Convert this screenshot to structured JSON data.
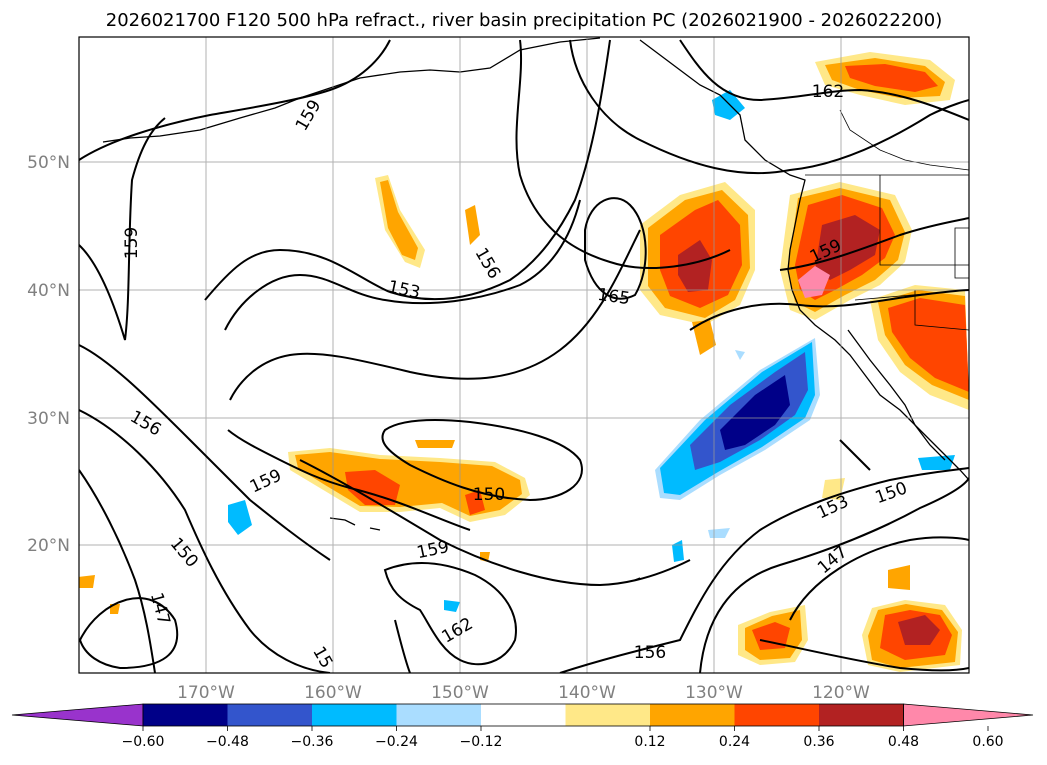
{
  "title": "2026021700 F120 500 hPa refract., river basin precipitation PC (2026021900 - 2026022200)",
  "map": {
    "lon_labels": [
      "170°W",
      "160°W",
      "150°W",
      "140°W",
      "130°W",
      "120°W"
    ],
    "lat_labels": [
      "50°N",
      "40°N",
      "30°N",
      "20°N"
    ],
    "contour_labels": [
      "159",
      "162",
      "159",
      "156",
      "153",
      "165",
      "159",
      "156",
      "159",
      "150",
      "159",
      "150",
      "153",
      "150",
      "147",
      "162",
      "156",
      "147",
      "15"
    ]
  },
  "colorbar": {
    "ticks": [
      "−0.60",
      "−0.48",
      "−0.36",
      "−0.24",
      "−0.12",
      "0.12",
      "0.24",
      "0.36",
      "0.48",
      "0.60"
    ],
    "colors": [
      "#9933cc",
      "#000088",
      "#3355cc",
      "#00bbff",
      "#aaddff",
      "#ffffff",
      "#ffe888",
      "#ffa500",
      "#ff4500",
      "#b22222",
      "#ff88aa"
    ]
  }
}
